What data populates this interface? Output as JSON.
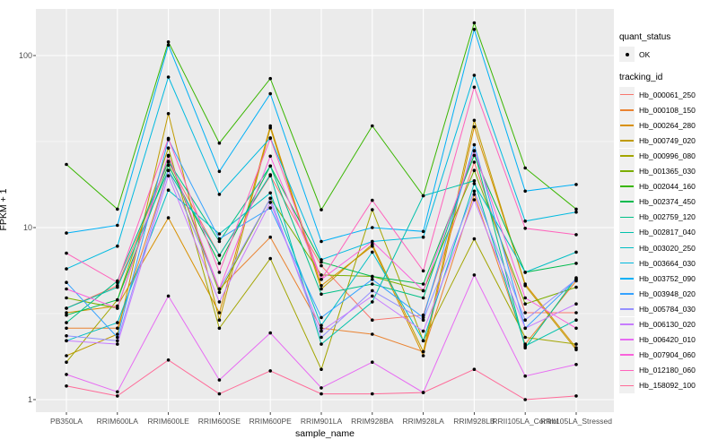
{
  "chart_data": {
    "type": "line",
    "title": "",
    "x_axis_label": "sample_name",
    "y_axis_label": "FPKM + 1",
    "y_scale": "log10",
    "y_ticks": [
      {
        "label": "100",
        "value": 100
      },
      {
        "label": "10",
        "value": 10
      },
      {
        "label": "1",
        "value": 1
      }
    ],
    "y_minor_ticks": [
      3.162,
      31.62
    ],
    "ylim": [
      1,
      200
    ],
    "grid": true,
    "legend_position": "right",
    "point_color": "#000000",
    "panel_bg": "#EBEBEB",
    "grid_color": "#FFFFFF",
    "categories": [
      "PB350LA",
      "RRIM600LA",
      "RRIM600LE",
      "RRIM600SE",
      "RRIM600PE",
      "RRIM901LA",
      "RRIM928BA",
      "RRIM928LA",
      "RRIM928LB",
      "RRII105LA_Control",
      "RRII105LA_Stressed"
    ],
    "series": [
      {
        "name": "Hb_000061_250",
        "color": "#F8766D",
        "values": [
          3.4,
          4.6,
          24,
          6.9,
          20,
          6.0,
          2.9,
          3.1,
          24,
          3.2,
          3.2
        ]
      },
      {
        "name": "Hb_000108_150",
        "color": "#EA8331",
        "values": [
          2.6,
          2.6,
          21.5,
          4.4,
          8.8,
          2.6,
          2.4,
          1.9,
          15.6,
          2.1,
          4.9
        ]
      },
      {
        "name": "Hb_000264_280",
        "color": "#D89000",
        "values": [
          3.2,
          3.5,
          11.4,
          3.2,
          39,
          4.6,
          7.8,
          1.8,
          38.5,
          4.7,
          2.0
        ]
      },
      {
        "name": "Hb_000749_020",
        "color": "#C09B00",
        "values": [
          1.8,
          2.4,
          46,
          2.9,
          38,
          4.4,
          8.0,
          1.9,
          42,
          4.6,
          1.95
        ]
      },
      {
        "name": "Hb_000996_080",
        "color": "#A3A500",
        "values": [
          1.65,
          3.8,
          29,
          2.6,
          6.6,
          1.5,
          12.7,
          2.2,
          8.6,
          2.3,
          2.1
        ]
      },
      {
        "name": "Hb_001365_030",
        "color": "#7CAE00",
        "values": [
          3.9,
          3.4,
          26,
          4.2,
          14.8,
          5.3,
          5.2,
          4.3,
          21.5,
          3.6,
          4.5
        ]
      },
      {
        "name": "Hb_002044_160",
        "color": "#39B600",
        "values": [
          23.3,
          12.8,
          120,
          31,
          73.5,
          12.7,
          39,
          15.3,
          155,
          22.2,
          12.8
        ]
      },
      {
        "name": "Hb_002374_450",
        "color": "#00BB4E",
        "values": [
          3.1,
          3.8,
          23,
          6.2,
          22.8,
          6.3,
          5.2,
          4.7,
          26.3,
          5.5,
          6.2
        ]
      },
      {
        "name": "Hb_002759_120",
        "color": "#00C087",
        "values": [
          2.8,
          4.9,
          24.3,
          8.3,
          22.8,
          4.1,
          4.7,
          3.9,
          27.9,
          2.0,
          5.1
        ]
      },
      {
        "name": "Hb_002817_040",
        "color": "#00C1AB",
        "values": [
          3.4,
          4.5,
          21.5,
          6.9,
          20.3,
          2.1,
          3.7,
          15.3,
          18.7,
          2.05,
          2.9
        ]
      },
      {
        "name": "Hb_003020_250",
        "color": "#00BFC4",
        "values": [
          2.2,
          2.8,
          16.5,
          9.2,
          15.9,
          2.7,
          7.2,
          2.2,
          18.0,
          5.5,
          7.2
        ]
      },
      {
        "name": "Hb_003664_030",
        "color": "#00BAE0",
        "values": [
          5.75,
          7.8,
          75,
          15.6,
          33.2,
          6.5,
          8.3,
          8.8,
          76.8,
          10.9,
          12.3
        ]
      },
      {
        "name": "Hb_003752_090",
        "color": "#00B0F6",
        "values": [
          9.3,
          10.3,
          115,
          21.2,
          60,
          8.3,
          10.0,
          9.5,
          142,
          16.3,
          17.8
        ]
      },
      {
        "name": "Hb_003948_020",
        "color": "#35A2FF",
        "values": [
          4.8,
          2.3,
          32.5,
          8.6,
          13.0,
          3.0,
          5.0,
          3.0,
          30.3,
          2.6,
          5.0
        ]
      },
      {
        "name": "Hb_005784_030",
        "color": "#9590FF",
        "values": [
          2.35,
          2.2,
          21.5,
          4.4,
          14.8,
          2.3,
          4.3,
          2.9,
          16.3,
          2.9,
          5.0
        ]
      },
      {
        "name": "Hb_006130_020",
        "color": "#C77CFF",
        "values": [
          2.2,
          2.1,
          20,
          3.7,
          14.0,
          2.5,
          4.0,
          2.5,
          14.5,
          2.6,
          3.6
        ]
      },
      {
        "name": "Hb_006420_010",
        "color": "#E76BF3",
        "values": [
          1.4,
          1.11,
          4.0,
          1.3,
          2.44,
          1.17,
          1.65,
          1.1,
          5.3,
          1.37,
          1.6
        ]
      },
      {
        "name": "Hb_007904_060",
        "color": "#FA62DB",
        "values": [
          4.4,
          3.4,
          26.3,
          4.4,
          26,
          5.0,
          8.3,
          4.3,
          28,
          3.9,
          2.6
        ]
      },
      {
        "name": "Hb_012180_060",
        "color": "#FF62BC",
        "values": [
          7.1,
          4.8,
          33,
          5.5,
          33,
          5.0,
          14.4,
          5.6,
          65.5,
          9.9,
          9.1
        ]
      },
      {
        "name": "Hb_158092_100",
        "color": "#FF6A98",
        "values": [
          1.2,
          1.05,
          1.7,
          1.08,
          1.47,
          1.08,
          1.08,
          1.1,
          1.5,
          1.0,
          1.05
        ]
      }
    ],
    "legend": {
      "quant_status": {
        "title": "quant_status",
        "items": [
          {
            "label": "OK"
          }
        ]
      },
      "tracking_id": {
        "title": "tracking_id"
      }
    }
  }
}
